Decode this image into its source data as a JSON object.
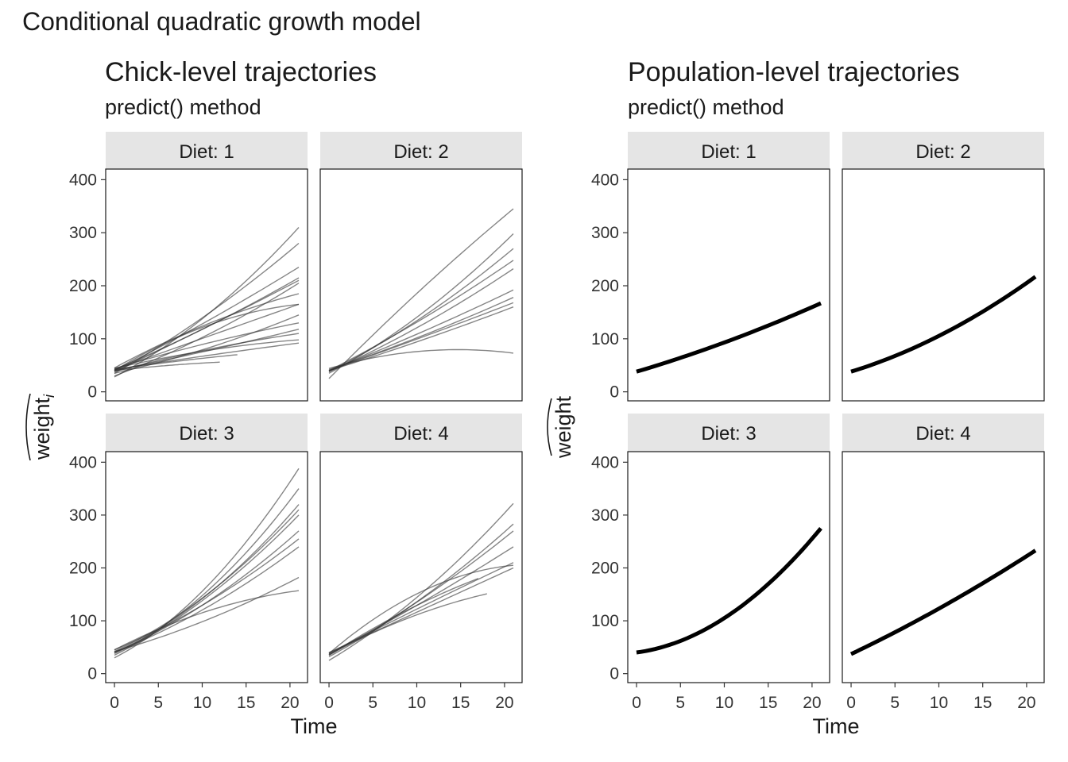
{
  "title": "Conditional quadratic growth model",
  "x_axis_title": "Time",
  "chart_data": [
    {
      "type": "line",
      "title": "Chick-level trajectories",
      "subtitle": "predict() method",
      "ylabel": "weight",
      "ylabel_subscript": "i",
      "xlabel": "Time",
      "xlim": [
        -1,
        22
      ],
      "ylim": [
        -17,
        420
      ],
      "x_ticks": [
        0,
        5,
        10,
        15,
        20
      ],
      "y_ticks": [
        0,
        100,
        200,
        300,
        400
      ],
      "line_color": "#4d4d4d",
      "panels": [
        {
          "strip": "Diet: 1",
          "series": [
            {
              "x": [
                0,
                21
              ],
              "y": [
                28,
                310
              ],
              "curve": 0.35
            },
            {
              "x": [
                0,
                21
              ],
              "y": [
                35,
                280
              ],
              "curve": 0.2
            },
            {
              "x": [
                0,
                21
              ],
              "y": [
                40,
                235
              ],
              "curve": 0.1
            },
            {
              "x": [
                0,
                21
              ],
              "y": [
                42,
                215
              ],
              "curve": 0.15
            },
            {
              "x": [
                0,
                21
              ],
              "y": [
                38,
                210
              ],
              "curve": 0.05
            },
            {
              "x": [
                0,
                21
              ],
              "y": [
                30,
                205
              ],
              "curve": 0.25
            },
            {
              "x": [
                0,
                21
              ],
              "y": [
                45,
                185
              ],
              "curve": -0.35
            },
            {
              "x": [
                0,
                21
              ],
              "y": [
                40,
                165
              ],
              "curve": -0.7
            },
            {
              "x": [
                0,
                21
              ],
              "y": [
                42,
                165
              ],
              "curve": 0.0
            },
            {
              "x": [
                0,
                21
              ],
              "y": [
                35,
                145
              ],
              "curve": 0.3
            },
            {
              "x": [
                0,
                21
              ],
              "y": [
                44,
                130
              ],
              "curve": -0.2
            },
            {
              "x": [
                0,
                21
              ],
              "y": [
                40,
                118
              ],
              "curve": 0.1
            },
            {
              "x": [
                0,
                21
              ],
              "y": [
                38,
                110
              ],
              "curve": -0.3
            },
            {
              "x": [
                0,
                21
              ],
              "y": [
                44,
                98
              ],
              "curve": -0.5
            },
            {
              "x": [
                0,
                21
              ],
              "y": [
                42,
                92
              ],
              "curve": -0.1
            },
            {
              "x": [
                0,
                14
              ],
              "y": [
                42,
                70
              ],
              "curve": -0.2
            },
            {
              "x": [
                0,
                12
              ],
              "y": [
                40,
                56
              ],
              "curve": -0.4
            }
          ]
        },
        {
          "strip": "Diet: 2",
          "series": [
            {
              "x": [
                0,
                21
              ],
              "y": [
                25,
                345
              ],
              "curve": -0.1
            },
            {
              "x": [
                0,
                21
              ],
              "y": [
                35,
                298
              ],
              "curve": 0.3
            },
            {
              "x": [
                0,
                21
              ],
              "y": [
                38,
                270
              ],
              "curve": 0.25
            },
            {
              "x": [
                0,
                21
              ],
              "y": [
                40,
                248
              ],
              "curve": 0.15
            },
            {
              "x": [
                0,
                21
              ],
              "y": [
                38,
                232
              ],
              "curve": 0.2
            },
            {
              "x": [
                0,
                21
              ],
              "y": [
                40,
                192
              ],
              "curve": 0.1
            },
            {
              "x": [
                0,
                21
              ],
              "y": [
                42,
                178
              ],
              "curve": 0.15
            },
            {
              "x": [
                0,
                21
              ],
              "y": [
                40,
                168
              ],
              "curve": 0.05
            },
            {
              "x": [
                0,
                21
              ],
              "y": [
                40,
                160
              ],
              "curve": 0.1
            },
            {
              "x": [
                0,
                21
              ],
              "y": [
                44,
                73
              ],
              "curve": -2.5
            }
          ]
        },
        {
          "strip": "Diet: 3",
          "series": [
            {
              "x": [
                0,
                21
              ],
              "y": [
                30,
                388
              ],
              "curve": 0.5
            },
            {
              "x": [
                0,
                21
              ],
              "y": [
                38,
                350
              ],
              "curve": 0.5
            },
            {
              "x": [
                0,
                21
              ],
              "y": [
                40,
                320
              ],
              "curve": 0.45
            },
            {
              "x": [
                0,
                21
              ],
              "y": [
                42,
                310
              ],
              "curve": 0.4
            },
            {
              "x": [
                0,
                21
              ],
              "y": [
                35,
                300
              ],
              "curve": 0.35
            },
            {
              "x": [
                0,
                21
              ],
              "y": [
                40,
                270
              ],
              "curve": 0.35
            },
            {
              "x": [
                0,
                21
              ],
              "y": [
                45,
                255
              ],
              "curve": 0.3
            },
            {
              "x": [
                0,
                21
              ],
              "y": [
                40,
                240
              ],
              "curve": 0.3
            },
            {
              "x": [
                0,
                21
              ],
              "y": [
                42,
                182
              ],
              "curve": 0.3
            },
            {
              "x": [
                0,
                21
              ],
              "y": [
                45,
                157
              ],
              "curve": -0.6
            }
          ]
        },
        {
          "strip": "Diet: 4",
          "series": [
            {
              "x": [
                0,
                21
              ],
              "y": [
                25,
                322
              ],
              "curve": 0.3
            },
            {
              "x": [
                0,
                21
              ],
              "y": [
                32,
                283
              ],
              "curve": 0.25
            },
            {
              "x": [
                0,
                21
              ],
              "y": [
                35,
                270
              ],
              "curve": 0.2
            },
            {
              "x": [
                0,
                21
              ],
              "y": [
                38,
                240
              ],
              "curve": 0.1
            },
            {
              "x": [
                0,
                21
              ],
              "y": [
                38,
                210
              ],
              "curve": -0.05
            },
            {
              "x": [
                0,
                21
              ],
              "y": [
                38,
                205
              ],
              "curve": -0.8
            },
            {
              "x": [
                0,
                21
              ],
              "y": [
                40,
                200
              ],
              "curve": 0.0
            },
            {
              "x": [
                0,
                18
              ],
              "y": [
                36,
                151
              ],
              "curve": -0.4
            },
            {
              "x": [
                0,
                17
              ],
              "y": [
                35,
                180
              ],
              "curve": -0.25
            }
          ]
        }
      ]
    },
    {
      "type": "line",
      "title": "Population-level trajectories",
      "subtitle": "predict() method",
      "ylabel": "weight",
      "xlabel": "Time",
      "xlim": [
        -1,
        22
      ],
      "ylim": [
        -17,
        420
      ],
      "x_ticks": [
        0,
        5,
        10,
        15,
        20
      ],
      "y_ticks": [
        0,
        100,
        200,
        300,
        400
      ],
      "line_color": "#000000",
      "panels": [
        {
          "strip": "Diet: 1",
          "series": [
            {
              "x": [
                0,
                21
              ],
              "y": [
                38,
                167
              ],
              "curve": 0.2
            }
          ]
        },
        {
          "strip": "Diet: 2",
          "series": [
            {
              "x": [
                0,
                21
              ],
              "y": [
                38,
                217
              ],
              "curve": 0.4
            }
          ]
        },
        {
          "strip": "Diet: 3",
          "series": [
            {
              "x": [
                0,
                21
              ],
              "y": [
                40,
                275
              ],
              "curve": 0.8
            }
          ]
        },
        {
          "strip": "Diet: 4",
          "series": [
            {
              "x": [
                0,
                21
              ],
              "y": [
                37,
                233
              ],
              "curve": 0.15
            }
          ]
        }
      ]
    }
  ]
}
